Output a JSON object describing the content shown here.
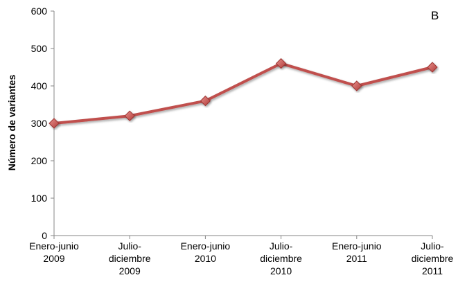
{
  "chart_data": {
    "type": "line",
    "panel_label": "B",
    "ylabel": "Número de variantes",
    "xlabel": "",
    "ylim": [
      0,
      600
    ],
    "yticks": [
      0,
      100,
      200,
      300,
      400,
      500,
      600
    ],
    "grid": false,
    "categories": [
      [
        "Enero-junio",
        "2009"
      ],
      [
        "Julio-",
        "diciembre",
        "2009"
      ],
      [
        "Enero-junio",
        "2010"
      ],
      [
        "Julio-",
        "diciembre",
        "2010"
      ],
      [
        "Enero-junio",
        "2011"
      ],
      [
        "Julio-",
        "diciembre",
        "2011"
      ]
    ],
    "series": [
      {
        "values": [
          300,
          320,
          360,
          460,
          400,
          450
        ],
        "color": "#c0504d",
        "marker": "diamond"
      }
    ]
  }
}
